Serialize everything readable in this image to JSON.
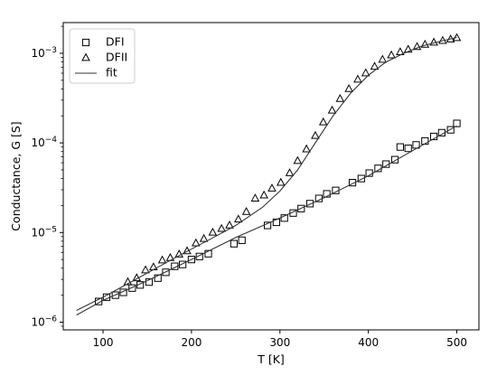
{
  "chart_data": {
    "type": "scatter",
    "xlabel": "T [K]",
    "ylabel": "Conductance, G [S]",
    "xlim": [
      55,
      525
    ],
    "ylim": [
      8.2e-07,
      0.0022
    ],
    "yscale": "log",
    "grid": false,
    "legend_position": "top-left",
    "x_ticks": [
      100,
      200,
      300,
      400,
      500
    ],
    "x_tick_labels": [
      "100",
      "200",
      "300",
      "400",
      "500"
    ],
    "y_ticks": [
      1e-06,
      1e-05,
      0.0001,
      0.001
    ],
    "y_tick_labels": [
      {
        "base": "10",
        "exp": "−6"
      },
      {
        "base": "10",
        "exp": "−5"
      },
      {
        "base": "10",
        "exp": "−4"
      },
      {
        "base": "10",
        "exp": "−3"
      }
    ],
    "series": [
      {
        "name": "DFI",
        "marker": "square",
        "x": [
          95,
          104,
          114,
          123,
          133,
          142,
          152,
          162,
          171,
          181,
          190,
          200,
          209,
          219,
          248,
          257,
          286,
          296,
          305,
          315,
          324,
          334,
          344,
          353,
          363,
          382,
          392,
          401,
          411,
          420,
          430,
          436,
          445,
          454,
          464,
          474,
          483,
          493,
          500
        ],
        "y": [
          1.7e-06,
          1.9e-06,
          2e-06,
          2.15e-06,
          2.4e-06,
          2.6e-06,
          2.8e-06,
          3.1e-06,
          3.6e-06,
          4.2e-06,
          4.4e-06,
          5e-06,
          5.4e-06,
          5.8e-06,
          7.5e-06,
          8.2e-06,
          1.2e-05,
          1.3e-05,
          1.45e-05,
          1.65e-05,
          1.85e-05,
          2.1e-05,
          2.4e-05,
          2.7e-05,
          2.95e-05,
          3.6e-05,
          4e-05,
          4.6e-05,
          5.2e-05,
          5.8e-05,
          6.5e-05,
          9e-05,
          8.7e-05,
          9.5e-05,
          0.000105,
          0.000118,
          0.00013,
          0.00014,
          0.000165
        ]
      },
      {
        "name": "DFII",
        "marker": "triangle",
        "x": [
          128,
          138,
          148,
          157,
          167,
          176,
          186,
          195,
          205,
          214,
          224,
          234,
          243,
          253,
          262,
          272,
          282,
          291,
          301,
          311,
          320,
          330,
          340,
          349,
          359,
          368,
          378,
          388,
          397,
          407,
          416,
          426,
          436,
          445,
          455,
          464,
          474,
          484,
          493,
          500
        ],
        "y": [
          2.8e-06,
          3.1e-06,
          3.8e-06,
          4.1e-06,
          4.9e-06,
          5.2e-06,
          5.7e-06,
          6.2e-06,
          7.6e-06,
          8.5e-06,
          1e-05,
          1.1e-05,
          1.2e-05,
          1.4e-05,
          1.7e-05,
          2.4e-05,
          2.6e-05,
          3.1e-05,
          3.6e-05,
          4.6e-05,
          6.3e-05,
          8.5e-05,
          0.00012,
          0.00017,
          0.00023,
          0.00031,
          0.0004,
          0.00051,
          0.0006,
          0.00071,
          0.00085,
          0.00095,
          0.00103,
          0.0011,
          0.00118,
          0.00125,
          0.00132,
          0.00138,
          0.00143,
          0.00148
        ]
      },
      {
        "name": "fit",
        "marker": "line",
        "x": [
          70,
          100,
          130,
          160,
          190,
          220,
          250,
          280,
          300,
          320,
          340,
          360,
          380,
          400,
          420,
          440,
          460,
          480,
          500
        ],
        "y": [
          1.35e-06,
          1.9e-06,
          2.75e-06,
          4e-06,
          5.8e-06,
          8.3e-06,
          1.2e-05,
          1.9e-05,
          2.9e-05,
          5e-05,
          0.0001,
          0.0002,
          0.00036,
          0.00057,
          0.0008,
          0.001,
          0.0012,
          0.00135,
          0.0015
        ]
      },
      {
        "name": "fit",
        "marker": "line",
        "x": [
          70,
          100,
          150,
          200,
          250,
          300,
          350,
          400,
          450,
          500
        ],
        "y": [
          1.2e-06,
          1.75e-06,
          2.9e-06,
          5e-06,
          8.8e-06,
          1.45e-05,
          2.45e-05,
          4.3e-05,
          8.2e-05,
          0.000155
        ]
      }
    ],
    "legend": [
      "DFI",
      "DFII",
      "fit"
    ]
  }
}
